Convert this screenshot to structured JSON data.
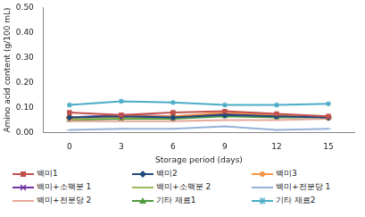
{
  "chart_data": {
    "type": "line",
    "x_label": "Storage period (days)",
    "y_label": "Amino acid content (g/100 mL)",
    "categories": [
      "0",
      "3",
      "6",
      "9",
      "12",
      "15"
    ],
    "ylim": [
      0,
      0.5
    ],
    "yticks": [
      {
        "value": 0,
        "label": "0.00"
      },
      {
        "value": 0.1,
        "label": "0.10"
      },
      {
        "value": 0.2,
        "label": "0.20"
      },
      {
        "value": 0.3,
        "label": "0.30"
      },
      {
        "value": 0.4,
        "label": "0.40"
      },
      {
        "value": 0.5,
        "label": "0.50"
      }
    ],
    "grid": false,
    "legend": "bottom",
    "series": [
      {
        "name": "백미1",
        "color": "#c0504d",
        "marker": "square",
        "values": [
          0.08,
          0.07,
          0.08,
          0.085,
          0.075,
          0.065
        ]
      },
      {
        "name": "백미2",
        "color": "#1f497d",
        "marker": "diamond",
        "values": [
          0.06,
          0.065,
          0.06,
          0.07,
          0.065,
          0.06
        ]
      },
      {
        "name": "백미3",
        "color": "#f79646",
        "marker": "circle",
        "values": [
          0.06,
          0.065,
          0.065,
          0.08,
          0.07,
          0.06
        ]
      },
      {
        "name": "백미+소맥분 1",
        "color": "#7030a0",
        "marker": "x",
        "values": [
          0.06,
          0.07,
          0.065,
          0.075,
          0.07,
          0.06
        ]
      },
      {
        "name": "백미+소맥분 2",
        "color": "#9bbb59",
        "marker": "dash",
        "values": [
          0.055,
          0.06,
          0.06,
          0.07,
          0.065,
          0.06
        ]
      },
      {
        "name": "백미+전분당 1",
        "color": "#95b3d7",
        "marker": "dash",
        "values": [
          0.01,
          0.015,
          0.015,
          0.025,
          0.01,
          0.015
        ]
      },
      {
        "name": "백미+전분당 2",
        "color": "#e6a899",
        "marker": "dash",
        "values": [
          0.045,
          0.045,
          0.045,
          0.05,
          0.05,
          0.055
        ]
      },
      {
        "name": "기타 재료1",
        "color": "#4f9a3c",
        "marker": "triangle",
        "values": [
          0.05,
          0.055,
          0.055,
          0.065,
          0.06,
          0.06
        ]
      },
      {
        "name": "기타 재료2",
        "color": "#4bacc6",
        "marker": "star",
        "values": [
          0.11,
          0.125,
          0.12,
          0.11,
          0.11,
          0.115
        ]
      }
    ]
  }
}
